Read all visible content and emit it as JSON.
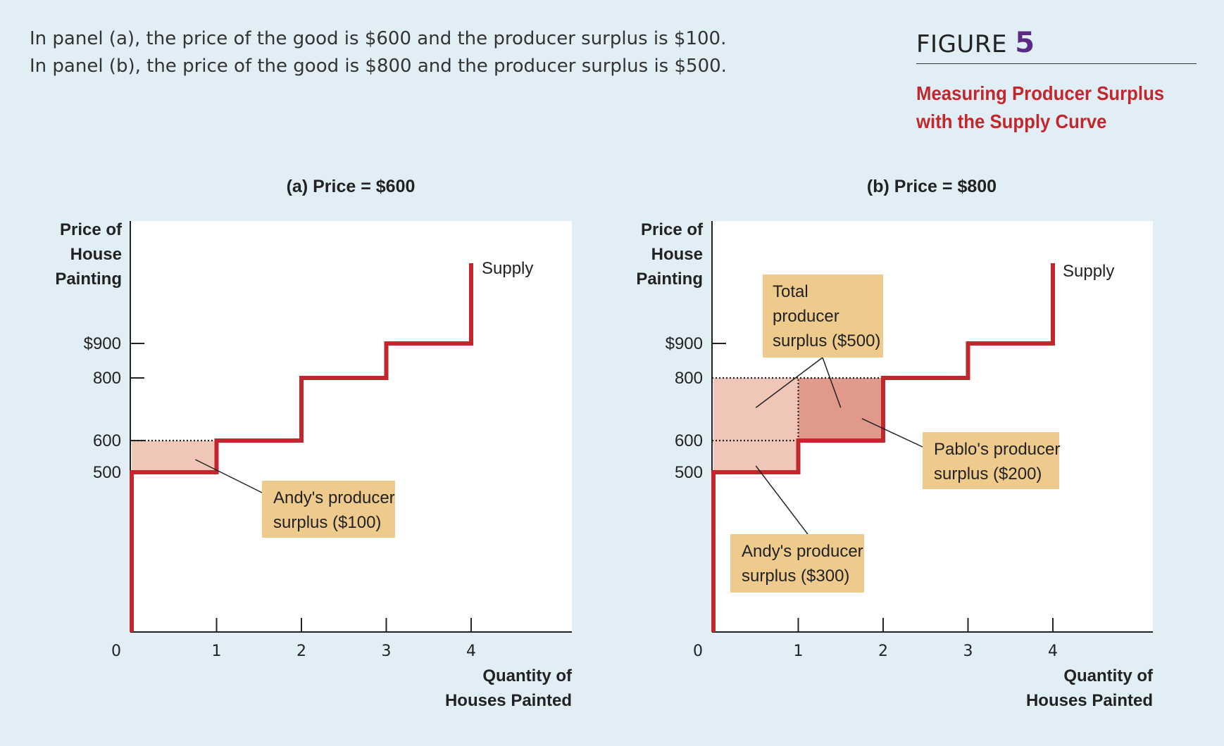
{
  "caption": {
    "line1": "In panel (a), the price of the good is $600 and the producer surplus is $100.",
    "line2": "In panel (b), the price of the good is $800 and the producer surplus is $500."
  },
  "figure": {
    "label": "FIGURE",
    "number": "5",
    "subtitle_line1": "Measuring Producer Surplus",
    "subtitle_line2": "with the Supply Curve"
  },
  "colors": {
    "supply": "#c1272d",
    "surplus_light": "#f0c6b8",
    "surplus_dark": "#e0998a",
    "label_box": "#eecb8d",
    "axis": "#222222"
  },
  "chart_data": [
    {
      "type": "line",
      "title": "(a) Price = $600",
      "xlabel": [
        "Quantity of",
        "Houses Painted"
      ],
      "ylabel": [
        "Price of",
        "House",
        "Painting"
      ],
      "origin_label": "0",
      "x_ticks": [
        1,
        2,
        3,
        4
      ],
      "y_ticks": [
        {
          "value": 900,
          "label": "$900"
        },
        {
          "value": 800,
          "label": "800"
        },
        {
          "value": 600,
          "label": "600"
        },
        {
          "value": 500,
          "label": "500"
        }
      ],
      "series": [
        {
          "name": "Supply",
          "steps": [
            {
              "q_from": 0,
              "q_to": 1,
              "price": 500
            },
            {
              "q_from": 1,
              "q_to": 2,
              "price": 600
            },
            {
              "q_from": 2,
              "q_to": 3,
              "price": 800
            },
            {
              "q_from": 3,
              "q_to": 4,
              "price": 900
            }
          ]
        }
      ],
      "price_line": 600,
      "surplus_regions": [
        {
          "q_from": 0,
          "q_to": 1,
          "p_from": 500,
          "p_to": 600,
          "shade": "light"
        }
      ],
      "annotations": [
        {
          "text": [
            "Andy's producer",
            "surplus ($100)"
          ],
          "points_to": [
            {
              "q": 0.75,
              "p": 540
            }
          ]
        }
      ]
    },
    {
      "type": "line",
      "title": "(b) Price = $800",
      "xlabel": [
        "Quantity of",
        "Houses Painted"
      ],
      "ylabel": [
        "Price of",
        "House",
        "Painting"
      ],
      "origin_label": "0",
      "x_ticks": [
        1,
        2,
        3,
        4
      ],
      "y_ticks": [
        {
          "value": 900,
          "label": "$900"
        },
        {
          "value": 800,
          "label": "800"
        },
        {
          "value": 600,
          "label": "600"
        },
        {
          "value": 500,
          "label": "500"
        }
      ],
      "series": [
        {
          "name": "Supply",
          "steps": [
            {
              "q_from": 0,
              "q_to": 1,
              "price": 500
            },
            {
              "q_from": 1,
              "q_to": 2,
              "price": 600
            },
            {
              "q_from": 2,
              "q_to": 3,
              "price": 800
            },
            {
              "q_from": 3,
              "q_to": 4,
              "price": 900
            }
          ]
        }
      ],
      "price_line": 800,
      "surplus_regions": [
        {
          "q_from": 0,
          "q_to": 1,
          "p_from": 500,
          "p_to": 800,
          "shade": "light"
        },
        {
          "q_from": 1,
          "q_to": 2,
          "p_from": 600,
          "p_to": 800,
          "shade": "dark"
        }
      ],
      "annotations": [
        {
          "text": [
            "Total",
            "producer",
            "surplus ($500)"
          ],
          "points_to": [
            {
              "q": 0.5,
              "p": 705
            },
            {
              "q": 1.5,
              "p": 705
            }
          ]
        },
        {
          "text": [
            "Pablo's producer",
            "surplus ($200)"
          ],
          "points_to": [
            {
              "q": 1.75,
              "p": 670
            }
          ]
        },
        {
          "text": [
            "Andy's producer",
            "surplus ($300)"
          ],
          "points_to": [
            {
              "q": 0.5,
              "p": 520
            }
          ]
        }
      ]
    }
  ]
}
